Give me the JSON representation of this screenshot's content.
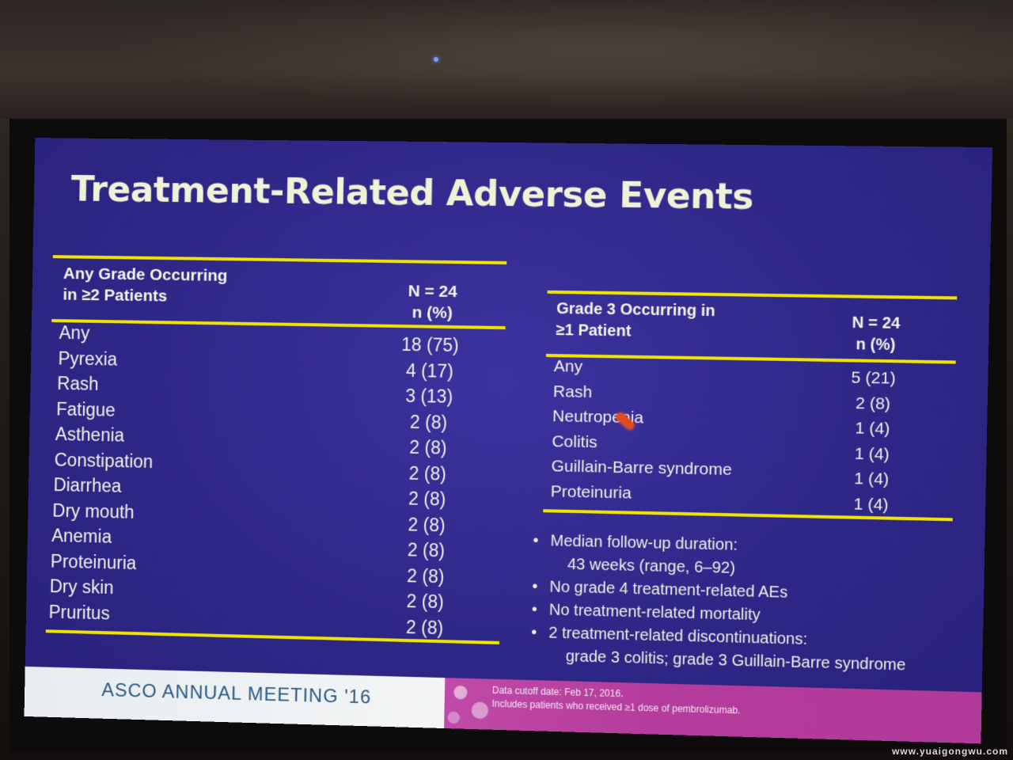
{
  "slide": {
    "title": "Treatment-Related Adverse Events",
    "left_table": {
      "header_col1_line1": "Any Grade Occurring",
      "header_col1_line2": "in ≥2 Patients",
      "header_col2_line1": "N = 24",
      "header_col2_line2": "n (%)",
      "rows": [
        {
          "event": "Any",
          "value": "18 (75)"
        },
        {
          "event": "Pyrexia",
          "value": "4 (17)"
        },
        {
          "event": "Rash",
          "value": "3 (13)"
        },
        {
          "event": "Fatigue",
          "value": "2 (8)"
        },
        {
          "event": "Asthenia",
          "value": "2 (8)"
        },
        {
          "event": "Constipation",
          "value": "2 (8)"
        },
        {
          "event": "Diarrhea",
          "value": "2 (8)"
        },
        {
          "event": "Dry mouth",
          "value": "2 (8)"
        },
        {
          "event": "Anemia",
          "value": "2 (8)"
        },
        {
          "event": "Proteinuria",
          "value": "2 (8)"
        },
        {
          "event": "Dry skin",
          "value": "2 (8)"
        },
        {
          "event": "Pruritus",
          "value": "2 (8)"
        }
      ]
    },
    "right_table": {
      "header_col1_line1": "Grade 3 Occurring in",
      "header_col1_line2": "≥1 Patient",
      "header_col2_line1": "N = 24",
      "header_col2_line2": "n (%)",
      "rows": [
        {
          "event": "Any",
          "value": "5 (21)"
        },
        {
          "event": "Rash",
          "value": "2 (8)"
        },
        {
          "event": "Neutropenia",
          "value": "1 (4)"
        },
        {
          "event": "Colitis",
          "value": "1 (4)"
        },
        {
          "event": "Guillain-Barre syndrome",
          "value": "1 (4)"
        },
        {
          "event": "Proteinuria",
          "value": "1 (4)"
        }
      ]
    },
    "bullets": {
      "b1_line1": "Median follow-up duration:",
      "b1_line2": "43 weeks (range, 6–92)",
      "b2": "No grade 4 treatment-related AEs",
      "b3": "No treatment-related mortality",
      "b4_line1": "2 treatment-related discontinuations:",
      "b4_line2": "grade 3 colitis; grade 3 Guillain-Barre syndrome",
      "bullet_char": "•"
    },
    "footer": {
      "meeting": "ASCO ANNUAL MEETING '16",
      "note_line1": "Data cutoff date: Feb 17, 2016.",
      "note_line2": "Includes patients who received ≥1 dose of pembrolizumab."
    }
  },
  "watermark": "www.yuaigongwu.com",
  "colors": {
    "slide_bg": "#2f2787",
    "rule": "#f2e400",
    "footer_magenta": "#b43c9c",
    "meeting_text": "#2c5a86"
  }
}
